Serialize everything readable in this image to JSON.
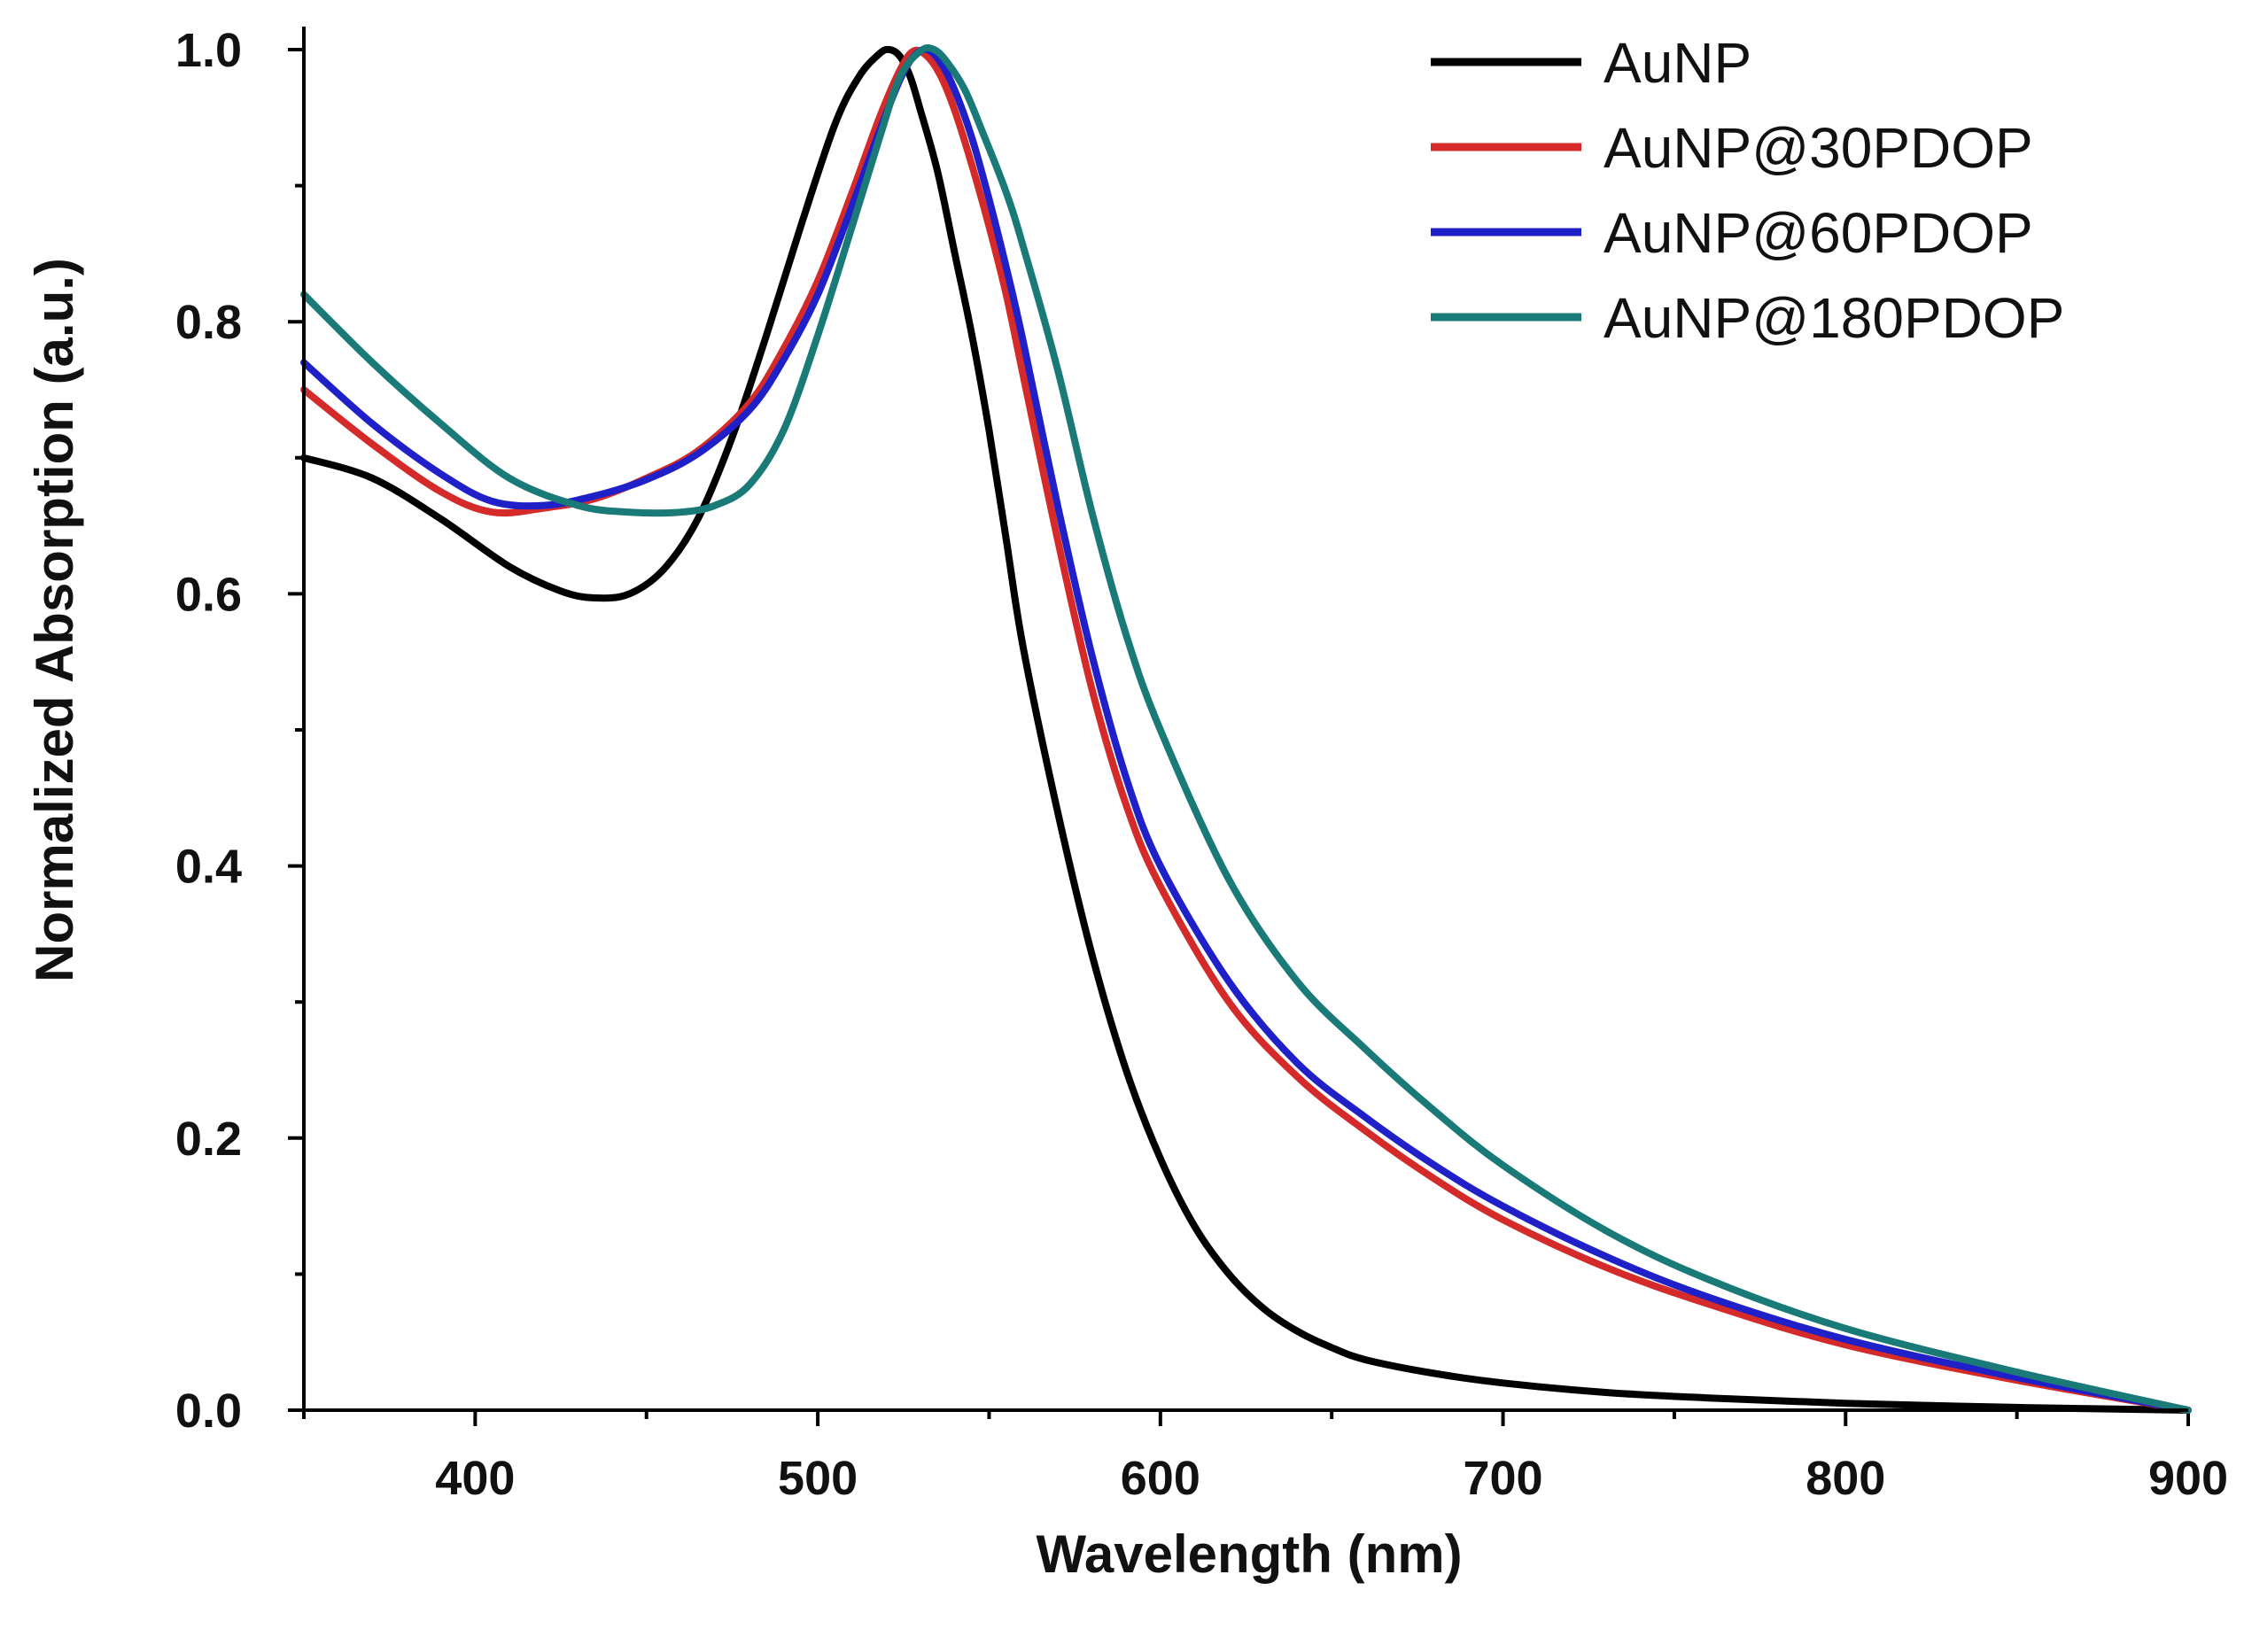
{
  "chart_data": {
    "type": "line",
    "title": "",
    "xlabel": "Wavelength (nm)",
    "ylabel": "Normalized Absorption (a.u.)",
    "xlim": [
      350,
      900
    ],
    "ylim": [
      0,
      1.0
    ],
    "x_ticks": [
      400,
      500,
      600,
      700,
      800,
      900
    ],
    "x_tick_labels": [
      "400",
      "500",
      "600",
      "700",
      "800",
      "900"
    ],
    "y_ticks": [
      0.0,
      0.2,
      0.4,
      0.6,
      0.8,
      1.0
    ],
    "y_tick_labels": [
      "0.0",
      "0.2",
      "0.4",
      "0.6",
      "0.8",
      "1.0"
    ],
    "legend_position": "top-right",
    "series": [
      {
        "name": "AuNP",
        "color": "#000000",
        "x": [
          350,
          370,
          390,
          410,
          425,
          435,
          445,
          455,
          465,
          475,
          485,
          495,
          505,
          512,
          518,
          521,
          524,
          527,
          530,
          535,
          540,
          545,
          550,
          555,
          560,
          570,
          580,
          590,
          600,
          610,
          620,
          630,
          640,
          650,
          660,
          680,
          700,
          730,
          760,
          800,
          850,
          900
        ],
        "y": [
          0.7,
          0.685,
          0.655,
          0.62,
          0.602,
          0.597,
          0.6,
          0.618,
          0.655,
          0.715,
          0.79,
          0.87,
          0.945,
          0.98,
          0.997,
          1.0,
          0.995,
          0.98,
          0.955,
          0.91,
          0.85,
          0.79,
          0.72,
          0.64,
          0.56,
          0.44,
          0.335,
          0.25,
          0.185,
          0.135,
          0.1,
          0.075,
          0.058,
          0.046,
          0.037,
          0.027,
          0.02,
          0.013,
          0.009,
          0.005,
          0.002,
          0.0
        ]
      },
      {
        "name": "AuNP@30PDOP",
        "color": "#d42a2a",
        "x": [
          350,
          370,
          390,
          405,
          420,
          435,
          450,
          465,
          480,
          490,
          500,
          510,
          518,
          524,
          528,
          532,
          536,
          540,
          545,
          550,
          555,
          560,
          570,
          580,
          590,
          600,
          620,
          640,
          660,
          680,
          700,
          730,
          760,
          800,
          850,
          900
        ],
        "y": [
          0.75,
          0.71,
          0.675,
          0.66,
          0.663,
          0.67,
          0.685,
          0.705,
          0.74,
          0.78,
          0.83,
          0.895,
          0.95,
          0.985,
          0.999,
          0.995,
          0.98,
          0.955,
          0.915,
          0.87,
          0.82,
          0.76,
          0.64,
          0.53,
          0.445,
          0.385,
          0.3,
          0.245,
          0.205,
          0.17,
          0.14,
          0.105,
          0.078,
          0.048,
          0.022,
          0.0
        ]
      },
      {
        "name": "AuNP@60PDOP",
        "color": "#2020c8",
        "x": [
          350,
          370,
          390,
          405,
          420,
          435,
          450,
          465,
          480,
          490,
          500,
          510,
          518,
          524,
          528,
          532,
          536,
          540,
          545,
          550,
          555,
          560,
          570,
          580,
          590,
          600,
          620,
          640,
          660,
          680,
          700,
          730,
          760,
          800,
          850,
          900
        ],
        "y": [
          0.77,
          0.725,
          0.688,
          0.668,
          0.665,
          0.672,
          0.684,
          0.703,
          0.735,
          0.772,
          0.82,
          0.885,
          0.94,
          0.978,
          0.995,
          1.0,
          0.99,
          0.97,
          0.935,
          0.89,
          0.84,
          0.785,
          0.665,
          0.555,
          0.465,
          0.4,
          0.315,
          0.255,
          0.215,
          0.18,
          0.15,
          0.113,
          0.083,
          0.052,
          0.024,
          0.0
        ]
      },
      {
        "name": "AuNP@180PDOP",
        "color": "#1a7a78",
        "x": [
          350,
          370,
          390,
          410,
          430,
          445,
          460,
          470,
          480,
          490,
          500,
          510,
          518,
          524,
          530,
          534,
          538,
          543,
          548,
          555,
          560,
          570,
          580,
          590,
          600,
          620,
          640,
          660,
          680,
          700,
          730,
          760,
          800,
          850,
          900
        ],
        "y": [
          0.82,
          0.77,
          0.725,
          0.685,
          0.665,
          0.66,
          0.66,
          0.665,
          0.68,
          0.72,
          0.79,
          0.87,
          0.935,
          0.98,
          0.999,
          1.0,
          0.99,
          0.97,
          0.94,
          0.895,
          0.855,
          0.765,
          0.66,
          0.57,
          0.5,
          0.39,
          0.315,
          0.265,
          0.22,
          0.18,
          0.132,
          0.096,
          0.06,
          0.028,
          0.0
        ]
      }
    ]
  }
}
